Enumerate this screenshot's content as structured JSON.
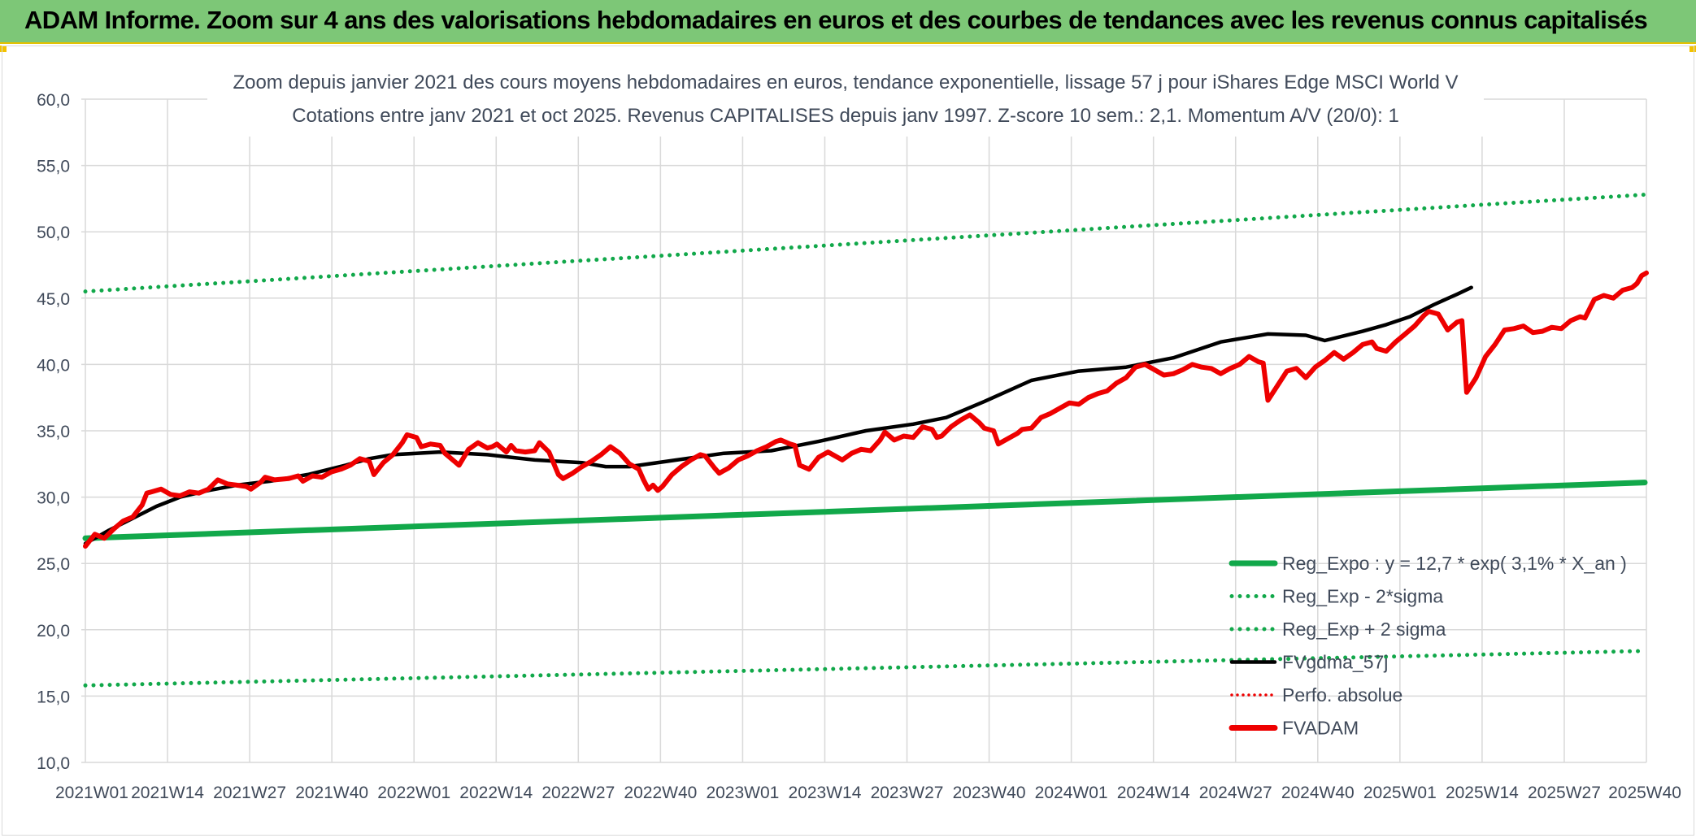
{
  "banner": {
    "title": "ADAM Informe. Zoom sur 4 ans des valorisations hebdomadaires en euros et des courbes de tendances avec les revenus connus capitalisés"
  },
  "colors": {
    "banner_bg": "#7dc777",
    "reg_expo": "#11a84a",
    "fvgdma": "#000000",
    "fvadam": "#ee0000",
    "perfo": "#ee0000",
    "grid": "#d9d9d9",
    "text": "#404a5a"
  },
  "chart_data": {
    "type": "line",
    "title_line1": "Zoom depuis janvier 2021 des cours moyens hebdomadaires en euros, tendance exponentielle, lissage 57 j pour iShares Edge MSCI World V",
    "title_line2": "Cotations entre janv 2021 et oct 2025. Revenus CAPITALISES depuis janv 1997. Z-score 10 sem.: 2,1. Momentum A/V (20/0): 1",
    "ylim": [
      10,
      60
    ],
    "y_ticks": [
      "60,0",
      "55,0",
      "50,0",
      "45,0",
      "40,0",
      "35,0",
      "30,0",
      "25,0",
      "20,0",
      "15,0",
      "10,0"
    ],
    "x_ticks": [
      "2021W01",
      "2021W14",
      "2021W27",
      "2021W40",
      "2022W01",
      "2022W14",
      "2022W27",
      "2022W40",
      "2023W01",
      "2023W14",
      "2023W27",
      "2023W40",
      "2024W01",
      "2024W14",
      "2024W27",
      "2024W40",
      "2025W01",
      "2025W14",
      "2025W27",
      "2025W40"
    ],
    "grid": "vertical and horizontal",
    "legend_position": "bottom-right",
    "legend": [
      {
        "label": "Reg_Expo : y = 12,7 * exp( 3,1% *  X_an )",
        "style": "solid-thick-green"
      },
      {
        "label": "Reg_Exp - 2*sigma",
        "style": "dotted-green"
      },
      {
        "label": "Reg_Exp + 2 sigma",
        "style": "dotted-green"
      },
      {
        "label": "FVgdma_57j",
        "style": "solid-black"
      },
      {
        "label": "Perfo. absolue",
        "style": "dotted-red"
      },
      {
        "label": "FVADAM",
        "style": "solid-thick-red"
      }
    ],
    "series": [
      {
        "name": "Reg_Expo : y = 12,7 * exp( 3,1% *  X_an )",
        "points": [
          [
            0,
            26.9
          ],
          [
            247,
            31.1
          ]
        ]
      },
      {
        "name": "Reg_Exp - 2*sigma",
        "points": [
          [
            0,
            15.8
          ],
          [
            247,
            18.4
          ]
        ]
      },
      {
        "name": "Reg_Exp + 2 sigma",
        "points": [
          [
            0,
            45.5
          ],
          [
            247,
            52.8
          ]
        ]
      },
      {
        "name": "FVgdma_57j",
        "points": [
          [
            0,
            26.5
          ],
          [
            5,
            27.5
          ],
          [
            10,
            28.4
          ],
          [
            15,
            29.3
          ],
          [
            20,
            30.0
          ],
          [
            26,
            30.5
          ],
          [
            32,
            30.9
          ],
          [
            39,
            31.2
          ],
          [
            47,
            31.7
          ],
          [
            55,
            32.4
          ],
          [
            60,
            32.9
          ],
          [
            65,
            33.2
          ],
          [
            75,
            33.4
          ],
          [
            85,
            33.2
          ],
          [
            95,
            32.8
          ],
          [
            105,
            32.6
          ],
          [
            110,
            32.3
          ],
          [
            115,
            32.3
          ],
          [
            125,
            32.8
          ],
          [
            135,
            33.3
          ],
          [
            145,
            33.5
          ],
          [
            155,
            34.2
          ],
          [
            165,
            35.0
          ],
          [
            175,
            35.5
          ],
          [
            182,
            36.0
          ],
          [
            190,
            37.2
          ],
          [
            200,
            38.8
          ],
          [
            210,
            39.5
          ],
          [
            220,
            39.8
          ],
          [
            230,
            40.5
          ],
          [
            240,
            41.7
          ],
          [
            250,
            42.3
          ],
          [
            258,
            42.2
          ],
          [
            262,
            41.8
          ],
          [
            270,
            42.5
          ],
          [
            275,
            43.0
          ],
          [
            280,
            43.6
          ],
          [
            285,
            44.5
          ],
          [
            290,
            45.3
          ],
          [
            293,
            45.8
          ]
        ]
      },
      {
        "name": "FVADAM",
        "points": [
          [
            0,
            26.3
          ],
          [
            2,
            27.2
          ],
          [
            4,
            26.9
          ],
          [
            6,
            27.6
          ],
          [
            8,
            28.2
          ],
          [
            10,
            28.5
          ],
          [
            12,
            29.4
          ],
          [
            13,
            30.3
          ],
          [
            14,
            30.4
          ],
          [
            16,
            30.6
          ],
          [
            18,
            30.2
          ],
          [
            20,
            30.1
          ],
          [
            22,
            30.4
          ],
          [
            24,
            30.3
          ],
          [
            26,
            30.6
          ],
          [
            28,
            31.3
          ],
          [
            30,
            31.0
          ],
          [
            32,
            30.9
          ],
          [
            34,
            30.8
          ],
          [
            35,
            30.6
          ],
          [
            37,
            31.1
          ],
          [
            38,
            31.5
          ],
          [
            40,
            31.3
          ],
          [
            43,
            31.4
          ],
          [
            45,
            31.6
          ],
          [
            46,
            31.2
          ],
          [
            48,
            31.6
          ],
          [
            50,
            31.5
          ],
          [
            52,
            31.9
          ],
          [
            54,
            32.1
          ],
          [
            56,
            32.4
          ],
          [
            58,
            32.9
          ],
          [
            60,
            32.7
          ],
          [
            61,
            31.7
          ],
          [
            63,
            32.6
          ],
          [
            65,
            33.2
          ],
          [
            67,
            34.1
          ],
          [
            68,
            34.7
          ],
          [
            70,
            34.5
          ],
          [
            71,
            33.8
          ],
          [
            73,
            34.0
          ],
          [
            75,
            33.9
          ],
          [
            76,
            33.3
          ],
          [
            78,
            32.7
          ],
          [
            79,
            32.4
          ],
          [
            81,
            33.6
          ],
          [
            83,
            34.1
          ],
          [
            85,
            33.7
          ],
          [
            86,
            33.8
          ],
          [
            87,
            34.0
          ],
          [
            89,
            33.4
          ],
          [
            90,
            33.9
          ],
          [
            91,
            33.5
          ],
          [
            93,
            33.4
          ],
          [
            95,
            33.5
          ],
          [
            96,
            34.1
          ],
          [
            98,
            33.4
          ],
          [
            100,
            31.7
          ],
          [
            101,
            31.4
          ],
          [
            103,
            31.8
          ],
          [
            105,
            32.3
          ],
          [
            107,
            32.7
          ],
          [
            109,
            33.2
          ],
          [
            111,
            33.8
          ],
          [
            113,
            33.3
          ],
          [
            115,
            32.5
          ],
          [
            117,
            32.1
          ],
          [
            118,
            31.3
          ],
          [
            119,
            30.6
          ],
          [
            120,
            30.9
          ],
          [
            121,
            30.5
          ],
          [
            122,
            30.8
          ],
          [
            124,
            31.7
          ],
          [
            126,
            32.3
          ],
          [
            128,
            32.8
          ],
          [
            130,
            33.2
          ],
          [
            131,
            33.1
          ],
          [
            133,
            32.2
          ],
          [
            134,
            31.8
          ],
          [
            136,
            32.2
          ],
          [
            138,
            32.8
          ],
          [
            140,
            33.1
          ],
          [
            142,
            33.5
          ],
          [
            144,
            33.8
          ],
          [
            146,
            34.2
          ],
          [
            147,
            34.3
          ],
          [
            149,
            34.0
          ],
          [
            150,
            33.9
          ],
          [
            151,
            32.4
          ],
          [
            153,
            32.1
          ],
          [
            155,
            33.0
          ],
          [
            157,
            33.4
          ],
          [
            158,
            33.2
          ],
          [
            160,
            32.8
          ],
          [
            162,
            33.3
          ],
          [
            164,
            33.6
          ],
          [
            166,
            33.5
          ],
          [
            168,
            34.3
          ],
          [
            169,
            34.9
          ],
          [
            171,
            34.3
          ],
          [
            173,
            34.6
          ],
          [
            175,
            34.5
          ],
          [
            177,
            35.3
          ],
          [
            179,
            35.1
          ],
          [
            180,
            34.5
          ],
          [
            181,
            34.6
          ],
          [
            183,
            35.3
          ],
          [
            185,
            35.8
          ],
          [
            187,
            36.2
          ],
          [
            189,
            35.6
          ],
          [
            190,
            35.2
          ],
          [
            192,
            35.0
          ],
          [
            193,
            34.0
          ],
          [
            195,
            34.4
          ],
          [
            197,
            34.8
          ],
          [
            198,
            35.1
          ],
          [
            200,
            35.2
          ],
          [
            202,
            36.0
          ],
          [
            204,
            36.3
          ],
          [
            206,
            36.7
          ],
          [
            208,
            37.1
          ],
          [
            210,
            37.0
          ],
          [
            212,
            37.5
          ],
          [
            214,
            37.8
          ],
          [
            216,
            38.0
          ],
          [
            218,
            38.6
          ],
          [
            220,
            39.0
          ],
          [
            222,
            39.8
          ],
          [
            224,
            40.0
          ],
          [
            226,
            39.6
          ],
          [
            228,
            39.2
          ],
          [
            230,
            39.3
          ],
          [
            232,
            39.6
          ],
          [
            234,
            40.0
          ],
          [
            236,
            39.8
          ],
          [
            238,
            39.7
          ],
          [
            240,
            39.3
          ],
          [
            242,
            39.7
          ],
          [
            244,
            40.0
          ],
          [
            246,
            40.6
          ],
          [
            248,
            40.2
          ],
          [
            249,
            40.1
          ],
          [
            250,
            37.3
          ],
          [
            252,
            38.4
          ],
          [
            254,
            39.5
          ],
          [
            256,
            39.7
          ],
          [
            258,
            39.0
          ],
          [
            260,
            39.8
          ],
          [
            262,
            40.3
          ],
          [
            264,
            40.9
          ],
          [
            266,
            40.4
          ],
          [
            268,
            40.9
          ],
          [
            270,
            41.5
          ],
          [
            272,
            41.7
          ],
          [
            273,
            41.2
          ],
          [
            275,
            41.0
          ],
          [
            277,
            41.7
          ],
          [
            279,
            42.3
          ],
          [
            281,
            42.9
          ],
          [
            283,
            43.7
          ],
          [
            284,
            44.0
          ],
          [
            286,
            43.8
          ],
          [
            288,
            42.6
          ],
          [
            290,
            43.2
          ],
          [
            291,
            43.3
          ],
          [
            292,
            37.9
          ],
          [
            294,
            39.0
          ],
          [
            296,
            40.6
          ],
          [
            298,
            41.5
          ],
          [
            300,
            42.6
          ],
          [
            302,
            42.7
          ],
          [
            304,
            42.9
          ],
          [
            306,
            42.4
          ],
          [
            308,
            42.5
          ],
          [
            310,
            42.8
          ],
          [
            312,
            42.7
          ],
          [
            314,
            43.3
          ],
          [
            316,
            43.6
          ],
          [
            317,
            43.5
          ],
          [
            319,
            44.9
          ],
          [
            321,
            45.2
          ],
          [
            323,
            45.0
          ],
          [
            325,
            45.6
          ],
          [
            327,
            45.8
          ],
          [
            328,
            46.1
          ],
          [
            329,
            46.7
          ],
          [
            330,
            46.9
          ]
        ]
      }
    ]
  }
}
